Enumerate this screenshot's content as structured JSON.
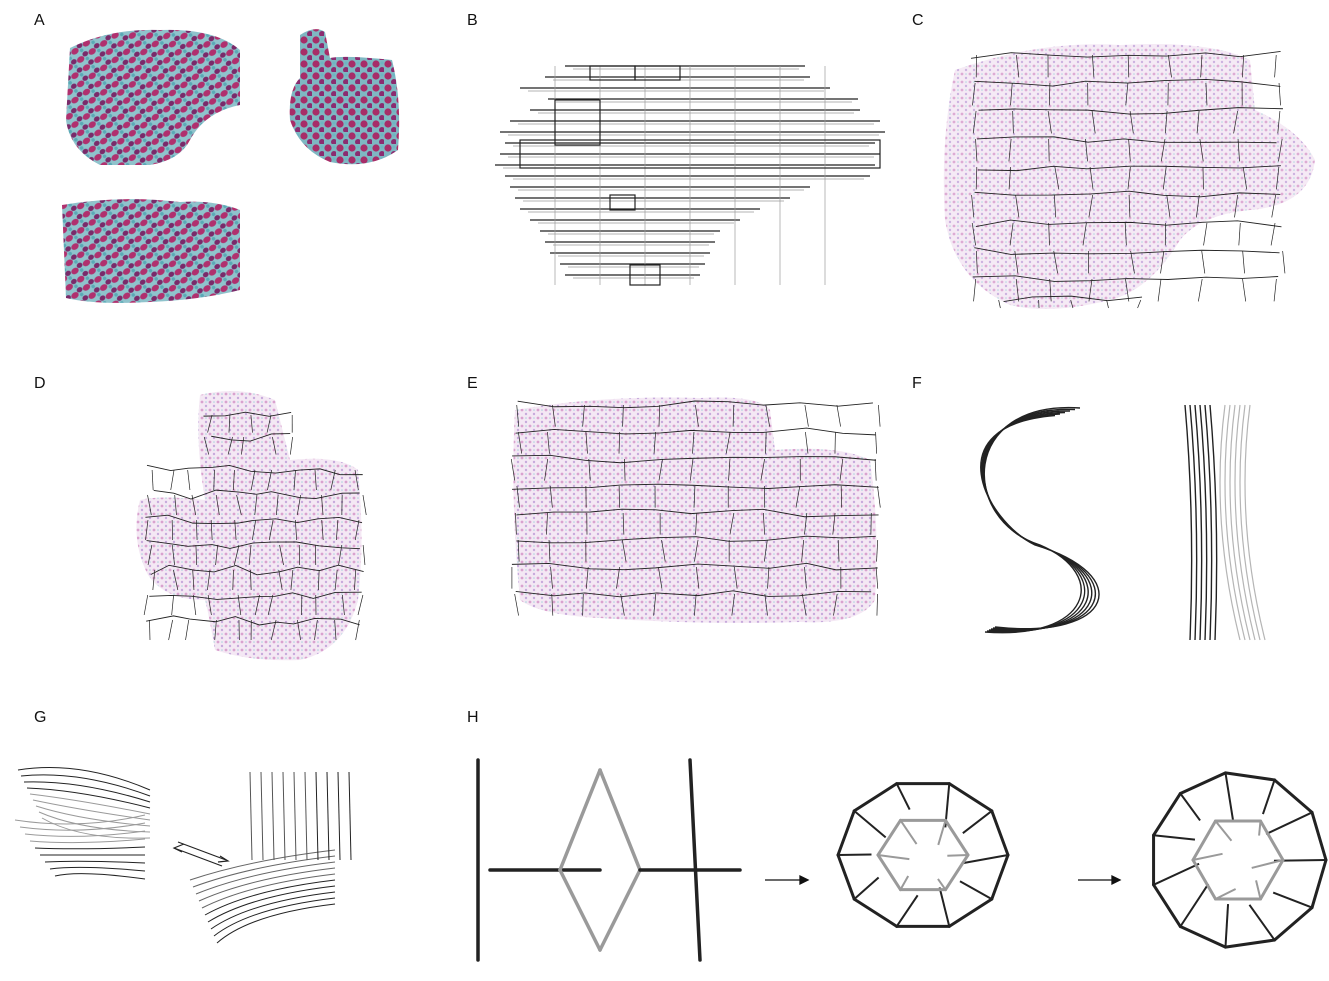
{
  "figure": {
    "panels": [
      {
        "label": "A"
      },
      {
        "label": "B"
      },
      {
        "label": "C"
      },
      {
        "label": "D"
      },
      {
        "label": "E"
      },
      {
        "label": "F"
      },
      {
        "label": "G"
      },
      {
        "label": "H"
      }
    ]
  },
  "colors": {
    "atom_pink": "#b0306e",
    "atom_cyan": "#6fb7c2",
    "helix_dark": "#222222",
    "helix_light": "#9a9a9a",
    "cloud": "#d7a9d3"
  }
}
